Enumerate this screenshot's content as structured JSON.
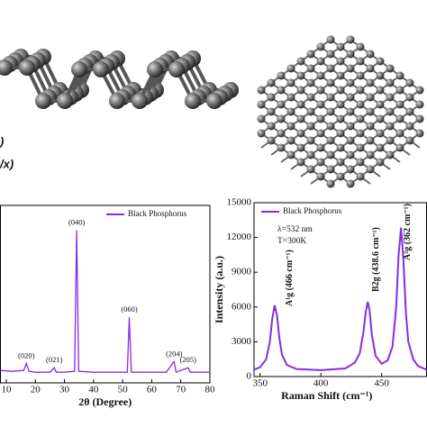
{
  "figure": {
    "labels": [
      ")",
      "/x)"
    ]
  },
  "chart_data": [
    {
      "type": "line",
      "xlabel": "2θ (Degree)",
      "xlim": [
        8,
        80
      ],
      "xticks": [
        10,
        20,
        30,
        40,
        50,
        60,
        70,
        80
      ],
      "ylim": [
        0,
        100
      ],
      "legend": "upper right",
      "x": [
        8,
        12,
        16,
        16.9,
        17.8,
        20,
        25,
        26.5,
        27.2,
        30,
        33.5,
        34.2,
        34.9,
        40,
        45,
        51.6,
        52.3,
        53,
        60,
        65,
        67.7,
        68.4,
        72.5,
        73.2,
        80
      ],
      "series": [
        {
          "name": "Black Phosphorus",
          "color": "#8a2be2",
          "values": [
            7,
            6.5,
            7,
            11,
            6.5,
            6,
            6,
            8.5,
            6,
            6,
            6.5,
            86,
            6.5,
            6,
            6,
            6,
            37,
            6,
            6,
            6,
            12,
            6,
            8.5,
            6,
            6
          ]
        }
      ],
      "peak_labels": [
        {
          "text": "(020)",
          "x": 16.9,
          "y": 11
        },
        {
          "text": "(021)",
          "x": 26.5,
          "y": 8.5
        },
        {
          "text": "(040)",
          "x": 34.2,
          "y": 86
        },
        {
          "text": "(060)",
          "x": 52.3,
          "y": 37
        },
        {
          "text": "(204)",
          "x": 67.7,
          "y": 12
        },
        {
          "text": "(205)",
          "x": 72.5,
          "y": 8.5
        }
      ]
    },
    {
      "type": "line",
      "xlabel": "Raman Shift (cm⁻¹)",
      "ylabel": "Intensity (a.u.)",
      "xlim": [
        345,
        487
      ],
      "xticks": [
        350,
        400,
        450
      ],
      "ylim": [
        0,
        15000
      ],
      "yticks": [
        0,
        3000,
        6000,
        9000,
        12000,
        15000
      ],
      "legend": "upper left",
      "notes": [
        "λ=532 nm",
        "T=300K"
      ],
      "x": [
        345,
        350,
        355,
        358,
        360,
        362,
        364,
        366,
        368,
        372,
        380,
        400,
        420,
        428,
        432,
        435,
        437,
        438.6,
        440,
        442,
        445,
        450,
        455,
        459,
        462,
        464,
        466,
        468,
        470,
        472,
        476,
        480,
        487
      ],
      "series": [
        {
          "name": "Black Phosphorus",
          "color": "#8a2be2",
          "values": [
            600,
            800,
            1500,
            3000,
            5000,
            6150,
            5200,
            3200,
            1900,
            1000,
            650,
            550,
            700,
            1200,
            2000,
            3800,
            5600,
            6450,
            5800,
            3600,
            1800,
            1100,
            1400,
            2600,
            6000,
            10500,
            12850,
            10000,
            5500,
            3000,
            1500,
            900,
            600
          ]
        }
      ],
      "peak_labels": [
        {
          "text": "A¹g (466 cm⁻¹)",
          "x": 374.6,
          "y": 8500
        },
        {
          "text": "B2g (438.6 cm⁻¹)",
          "x": 445.7,
          "y": 10100
        },
        {
          "text": "A²g (362 cm⁻¹)",
          "x": 471.7,
          "y": 12470
        }
      ]
    }
  ]
}
